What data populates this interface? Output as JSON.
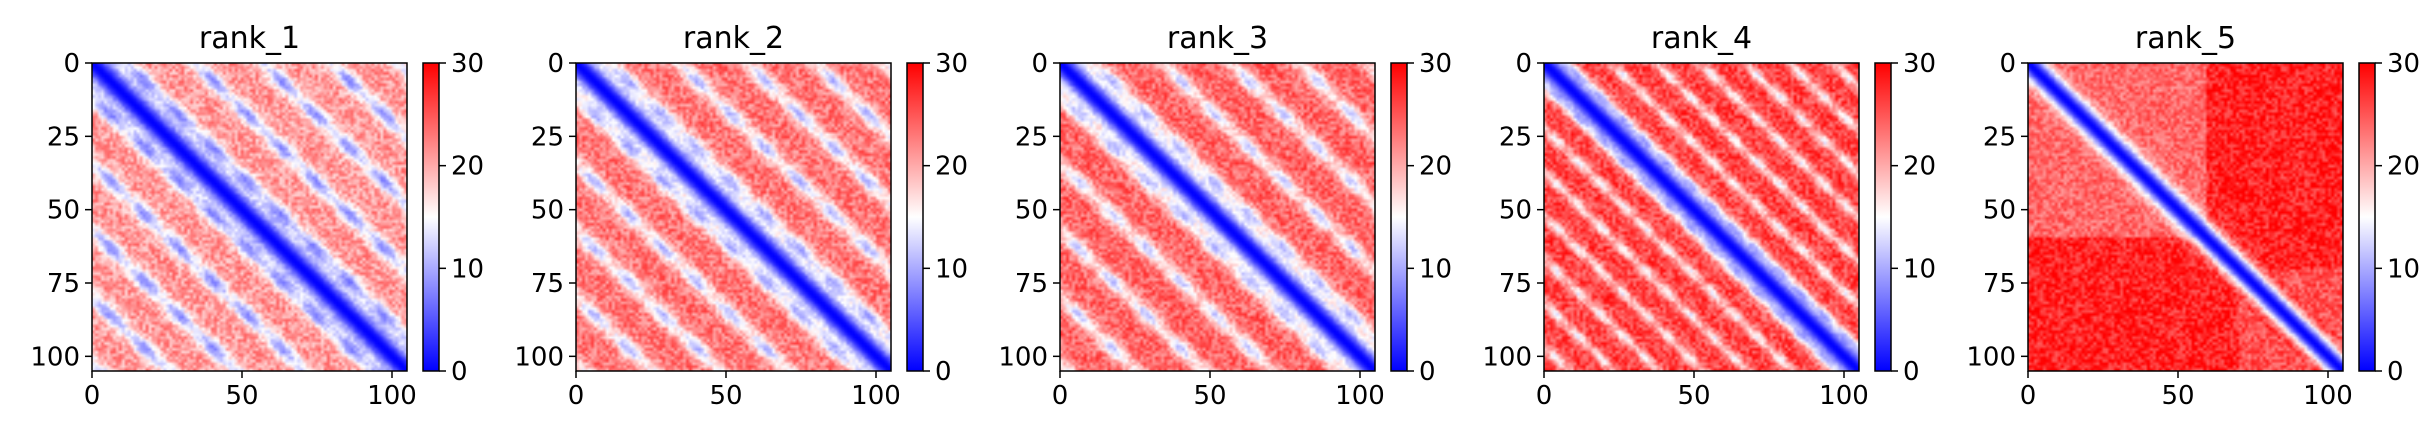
{
  "chart_data": [
    {
      "type": "heatmap",
      "title": "rank_1",
      "size": 106,
      "xlim": [
        0,
        105
      ],
      "ylim": [
        105,
        0
      ],
      "xticks": [
        0,
        50,
        100
      ],
      "yticks": [
        0,
        25,
        50,
        75,
        100
      ],
      "colorbar": {
        "colormap": "bwr",
        "vmin": 0,
        "vmax": 30,
        "ticks": [
          0,
          10,
          20,
          30
        ]
      },
      "pattern": {
        "band_width": 5,
        "period": 23,
        "off_diagonal_strength": 0.62,
        "background_level": 21
      }
    },
    {
      "type": "heatmap",
      "title": "rank_2",
      "size": 106,
      "xlim": [
        0,
        105
      ],
      "ylim": [
        105,
        0
      ],
      "xticks": [
        0,
        50,
        100
      ],
      "yticks": [
        0,
        25,
        50,
        75,
        100
      ],
      "colorbar": {
        "colormap": "bwr",
        "vmin": 0,
        "vmax": 30,
        "ticks": [
          0,
          10,
          20,
          30
        ]
      },
      "pattern": {
        "band_width": 5,
        "period": 23,
        "off_diagonal_strength": 0.55,
        "background_level": 23
      }
    },
    {
      "type": "heatmap",
      "title": "rank_3",
      "size": 106,
      "xlim": [
        0,
        105
      ],
      "ylim": [
        105,
        0
      ],
      "xticks": [
        0,
        50,
        100
      ],
      "yticks": [
        0,
        25,
        50,
        75,
        100
      ],
      "colorbar": {
        "colormap": "bwr",
        "vmin": 0,
        "vmax": 30,
        "ticks": [
          0,
          10,
          20,
          30
        ]
      },
      "pattern": {
        "band_width": 5,
        "period": 23,
        "off_diagonal_strength": 0.52,
        "background_level": 24
      }
    },
    {
      "type": "heatmap",
      "title": "rank_4",
      "size": 106,
      "xlim": [
        0,
        105
      ],
      "ylim": [
        105,
        0
      ],
      "xticks": [
        0,
        50,
        100
      ],
      "yticks": [
        0,
        25,
        50,
        75,
        100
      ],
      "colorbar": {
        "colormap": "bwr",
        "vmin": 0,
        "vmax": 30,
        "ticks": [
          0,
          10,
          20,
          30
        ]
      },
      "pattern": {
        "band_width": 5,
        "period": 15,
        "off_diagonal_strength": 0.45,
        "background_level": 26
      }
    },
    {
      "type": "heatmap",
      "title": "rank_5",
      "size": 106,
      "xlim": [
        0,
        105
      ],
      "ylim": [
        105,
        0
      ],
      "xticks": [
        0,
        50,
        100
      ],
      "yticks": [
        0,
        25,
        50,
        75,
        100
      ],
      "colorbar": {
        "colormap": "bwr",
        "vmin": 0,
        "vmax": 30,
        "ticks": [
          0,
          10,
          20,
          30
        ]
      },
      "pattern": {
        "band_width": 4,
        "period": 0,
        "off_diagonal_strength": 0.0,
        "background_level": 28
      }
    }
  ]
}
